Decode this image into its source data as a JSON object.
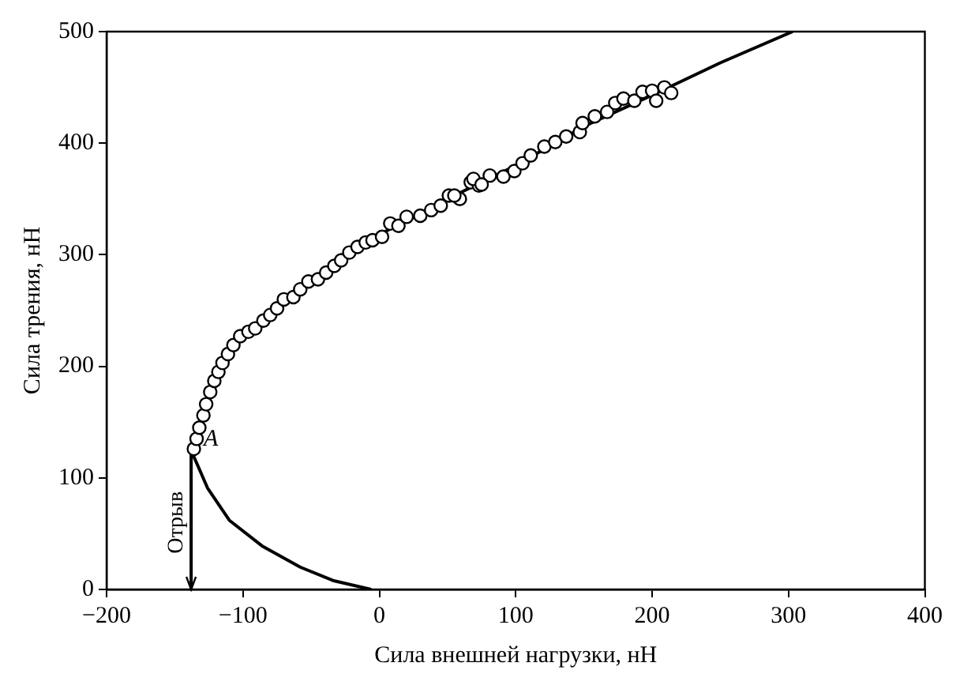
{
  "chart_data": {
    "type": "scatter",
    "xlabel": "Сила внешней нагрузки, нН",
    "ylabel": "Сила трения, нН",
    "xlim": [
      -200,
      400
    ],
    "xticks": [
      {
        "value": -200,
        "label": "−200"
      },
      {
        "value": -100,
        "label": "−100"
      },
      0,
      100,
      200,
      300,
      400
    ],
    "ylim": [
      0,
      500
    ],
    "yticks": [
      0,
      100,
      200,
      300,
      400,
      500
    ],
    "marker": "circle",
    "annotations": [
      {
        "text": "A",
        "x": -138,
        "y": 127
      },
      {
        "text": "Отрыв",
        "x": -138,
        "y": 60
      }
    ],
    "series": [
      {
        "type": "line",
        "marker": "none",
        "color": "#000000",
        "x": [
          -138,
          -130,
          -120,
          -105,
          -80,
          -50,
          -20,
          0,
          50,
          100,
          150,
          200,
          250,
          303
        ],
        "values": [
          127,
          155,
          190,
          222,
          248,
          276,
          300,
          318,
          350,
          380,
          415,
          443,
          472,
          500
        ]
      },
      {
        "type": "line",
        "marker": "none",
        "color": "#000000",
        "x": [
          -138,
          -136,
          -126,
          -110,
          -86,
          -58,
          -34,
          -6
        ],
        "values": [
          127,
          119,
          91,
          62,
          39,
          20,
          8,
          0
        ]
      },
      {
        "color": "#000000",
        "x": [
          -136,
          -134,
          -132,
          -129,
          -127,
          -124,
          -121,
          -118,
          -115,
          -111,
          -107,
          -102,
          -96,
          -91,
          -85,
          -80,
          -75,
          -70,
          -63,
          -58,
          -52,
          -45,
          -39,
          -33,
          -28,
          -22,
          -16,
          -10,
          -5,
          2,
          8,
          14,
          20,
          30,
          38,
          45,
          51,
          59,
          67,
          73,
          81,
          55,
          69,
          75,
          91,
          99,
          105,
          111,
          121,
          129,
          137,
          147,
          149,
          158,
          167,
          173,
          179,
          187,
          193,
          200,
          203,
          209,
          214
        ],
        "values": [
          126,
          135,
          145,
          156,
          166,
          177,
          187,
          195,
          203,
          211,
          219,
          227,
          231,
          234,
          241,
          246,
          252,
          260,
          262,
          269,
          276,
          278,
          284,
          290,
          295,
          302,
          307,
          311,
          313,
          316,
          328,
          326,
          334,
          335,
          340,
          344,
          353,
          350,
          365,
          362,
          371,
          353,
          368,
          363,
          370,
          375,
          382,
          389,
          397,
          401,
          406,
          410,
          418,
          424,
          428,
          436,
          440,
          438,
          446,
          447,
          438,
          450,
          445
        ]
      },
      {
        "type": "line",
        "marker": "none",
        "color": "#000000",
        "x": [
          -138,
          -138
        ],
        "values": [
          127,
          0
        ]
      }
    ]
  }
}
